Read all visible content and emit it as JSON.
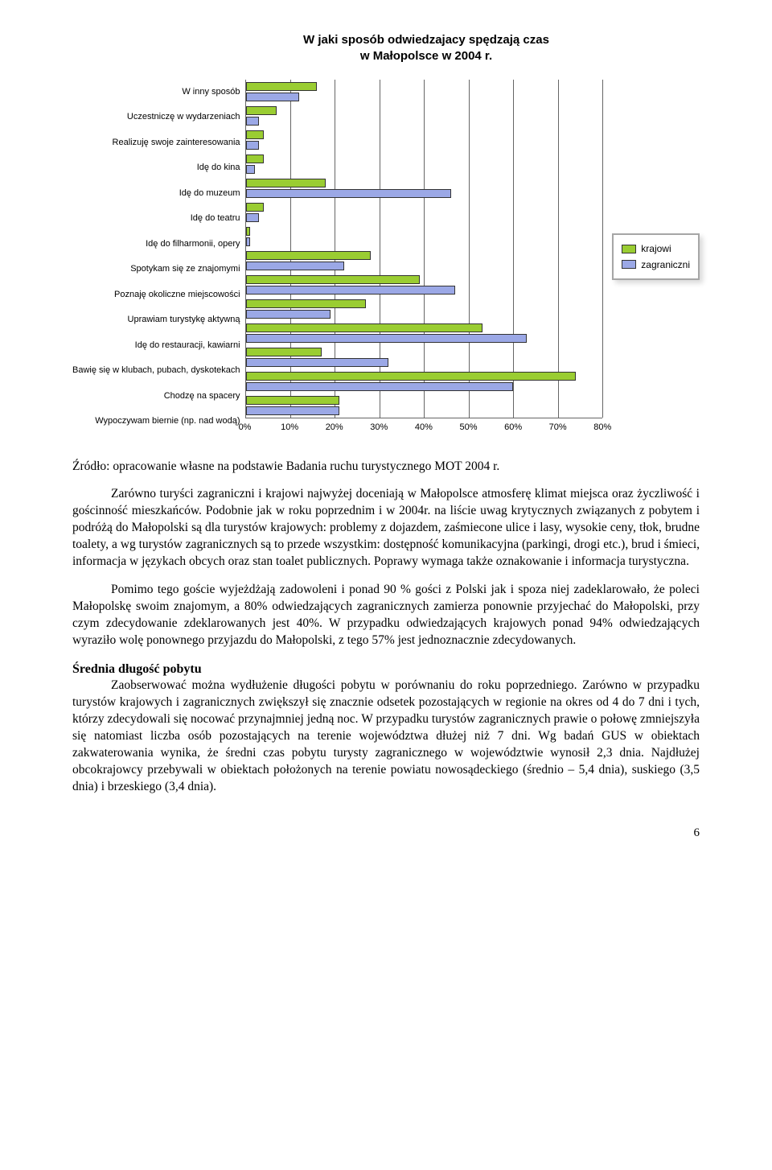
{
  "chart": {
    "title_line1": "W jaki sposób odwiedzajacy spędzają czas",
    "title_line2": "w Małopolsce w 2004 r.",
    "type": "bar",
    "bar_colors": {
      "krajowi": "#9acd32",
      "zagraniczni": "#9ba8e6"
    },
    "bar_border": "#333333",
    "grid_color": "#666666",
    "background_color": "#ffffff",
    "xlim": [
      0,
      80
    ],
    "xtick_step": 10,
    "xticks": [
      "0%",
      "10%",
      "20%",
      "30%",
      "40%",
      "50%",
      "60%",
      "70%",
      "80%"
    ],
    "legend_border": "#a6a6a6",
    "legend": [
      {
        "label": "krajowi",
        "color": "#9acd32"
      },
      {
        "label": "zagraniczni",
        "color": "#9ba8e6"
      }
    ],
    "label_fontsize": 11,
    "categories": [
      {
        "label": "W inny sposób",
        "krajowi": 16,
        "zagraniczni": 12
      },
      {
        "label": "Uczestniczę w wydarzeniach",
        "krajowi": 7,
        "zagraniczni": 3
      },
      {
        "label": "Realizuję swoje zainteresowania",
        "krajowi": 4,
        "zagraniczni": 3
      },
      {
        "label": "Idę do kina",
        "krajowi": 4,
        "zagraniczni": 2
      },
      {
        "label": "Idę do muzeum",
        "krajowi": 18,
        "zagraniczni": 46
      },
      {
        "label": "Idę do teatru",
        "krajowi": 4,
        "zagraniczni": 3
      },
      {
        "label": "Idę do filharmonii, opery",
        "krajowi": 1,
        "zagraniczni": 1
      },
      {
        "label": "Spotykam się ze znajomymi",
        "krajowi": 28,
        "zagraniczni": 22
      },
      {
        "label": "Poznaję okoliczne miejscowości",
        "krajowi": 39,
        "zagraniczni": 47
      },
      {
        "label": "Uprawiam turystykę aktywną",
        "krajowi": 27,
        "zagraniczni": 19
      },
      {
        "label": "Idę do restauracji, kawiarni",
        "krajowi": 53,
        "zagraniczni": 63
      },
      {
        "label": "Bawię się w klubach, pubach, dyskotekach",
        "krajowi": 17,
        "zagraniczni": 32
      },
      {
        "label": "Chodzę na spacery",
        "krajowi": 74,
        "zagraniczni": 60
      },
      {
        "label": "Wypoczywam biernie (np. nad wodą)",
        "krajowi": 21,
        "zagraniczni": 21
      }
    ]
  },
  "source": "Źródło: opracowanie własne na podstawie Badania ruchu turystycznego MOT 2004 r.",
  "body": {
    "p1": "Zarówno turyści zagraniczni i krajowi najwyżej doceniają w Małopolsce atmosferę klimat miejsca oraz życzliwość i gościnność mieszkańców. Podobnie jak w roku poprzednim i w 2004r. na liście uwag krytycznych związanych z pobytem i podróżą do Małopolski są dla turystów krajowych: problemy z dojazdem, zaśmiecone ulice i lasy, wysokie ceny, tłok, brudne toalety, a wg turystów zagranicznych są to przede wszystkim: dostępność komunikacyjna (parkingi, drogi etc.), brud i śmieci, informacja w językach obcych oraz stan toalet publicznych. Poprawy wymaga także oznakowanie i informacja turystyczna.",
    "p2": "Pomimo tego goście wyjeżdżają zadowoleni i ponad 90 % gości z Polski jak i spoza niej zadeklarowało, że poleci Małopolskę swoim znajomym, a 80% odwiedzających zagranicznych zamierza ponownie przyjechać do Małopolski, przy czym zdecydowanie zdeklarowanych jest 40%. W przypadku odwiedzających krajowych ponad 94% odwiedzających wyraziło wolę ponownego przyjazdu do Małopolski, z tego 57% jest jednoznacznie zdecydowanych.",
    "h1": "Średnia długość pobytu",
    "p3": "Zaobserwować można wydłużenie długości pobytu w porównaniu do roku poprzedniego. Zarówno w przypadku turystów krajowych i zagranicznych zwiększył się znacznie odsetek pozostających w regionie na okres od 4 do 7 dni i tych, którzy zdecydowali się nocować przynajmniej jedną noc. W przypadku turystów zagranicznych prawie o połowę zmniejszyła się natomiast liczba osób pozostających na terenie województwa dłużej niż 7 dni. Wg badań GUS w obiektach zakwaterowania wynika, że średni czas pobytu turysty zagranicznego w województwie wynosił 2,3 dnia. Najdłużej obcokrajowcy przebywali w obiektach położonych na terenie powiatu nowosądeckiego (średnio – 5,4 dnia), suskiego (3,5 dnia) i brzeskiego (3,4 dnia)."
  },
  "pagenum": "6"
}
